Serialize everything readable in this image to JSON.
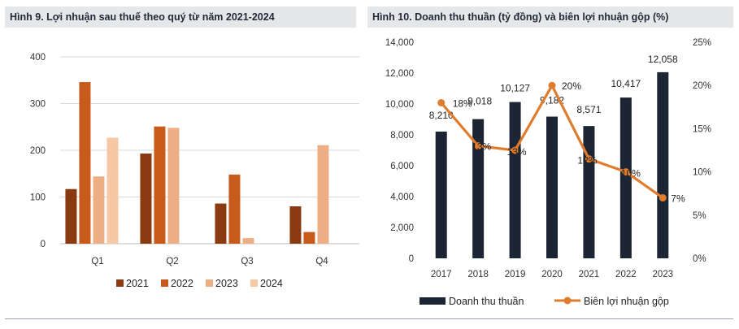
{
  "titles": {
    "left": "Hình 9. Lợi nhuận sau thuế theo quý từ năm 2021-2024",
    "right": "Hình 10. Doanh thu thuần (tỷ đồng) và biên lợi nhuận gộp (%)"
  },
  "colors": {
    "s2021": "#8a3a10",
    "s2022": "#c85a1c",
    "s2023": "#eeae84",
    "s2024": "#f6c8a4",
    "bar_dark": "#1c2533",
    "line_orange": "#e07c2e",
    "grid": "#d9d9d9"
  },
  "chart_data": [
    {
      "type": "bar",
      "categories": [
        "Q1",
        "Q2",
        "Q3",
        "Q4"
      ],
      "series": [
        {
          "name": "2021",
          "values": [
            117,
            193,
            86,
            80
          ]
        },
        {
          "name": "2022",
          "values": [
            346,
            251,
            148,
            25
          ]
        },
        {
          "name": "2023",
          "values": [
            144,
            248,
            12,
            211
          ]
        },
        {
          "name": "2024",
          "values": [
            227,
            null,
            null,
            null
          ]
        }
      ],
      "ylim": [
        0,
        400
      ],
      "yticks": [
        0,
        100,
        200,
        300,
        400
      ],
      "grid": true,
      "legend": "bottom"
    },
    {
      "type": "bar",
      "categories": [
        "2017",
        "2018",
        "2019",
        "2020",
        "2021",
        "2022",
        "2023"
      ],
      "series": [
        {
          "name": "Doanh thu thuần",
          "type": "bar",
          "axis": "left",
          "values": [
            8210,
            9018,
            10127,
            9182,
            8571,
            10417,
            12058
          ],
          "labels": [
            "8,210",
            "9,018",
            "10,127",
            "9,182",
            "8,571",
            "10,417",
            "12,058"
          ]
        },
        {
          "name": "Biên lợi nhuận gộp",
          "type": "line",
          "axis": "right",
          "values": [
            18,
            13,
            12.5,
            20,
            11.5,
            10,
            7
          ],
          "labels": [
            "18%",
            "13%",
            "13%",
            "20%",
            "12%",
            "10%",
            "7%"
          ]
        }
      ],
      "ylim_left": [
        0,
        14000
      ],
      "yticks_left": [
        "0",
        "2,000",
        "4,000",
        "6,000",
        "8,000",
        "10,000",
        "12,000",
        "14,000"
      ],
      "ylim_right": [
        0,
        25
      ],
      "yticks_right": [
        "0%",
        "5%",
        "10%",
        "15%",
        "20%",
        "25%"
      ],
      "grid": false,
      "legend": "bottom"
    }
  ]
}
